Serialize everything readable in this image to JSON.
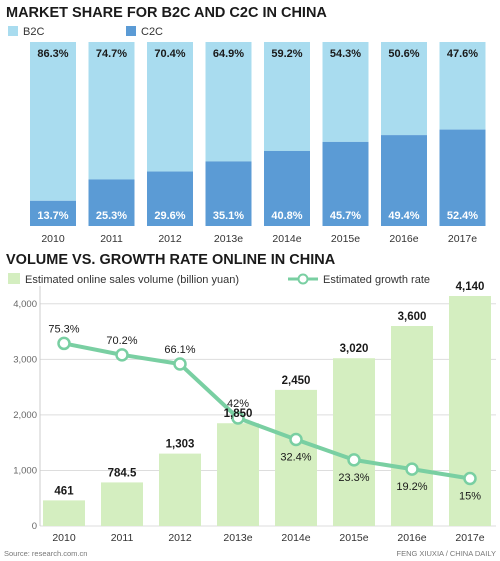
{
  "colors": {
    "b2c": "#a9dcef",
    "c2c": "#5b9bd5",
    "volume_bar": "#d4eec0",
    "growth_line": "#79cfa2",
    "gridline": "#dddddd",
    "title": "#1a1a1a"
  },
  "chart_data": [
    {
      "type": "bar",
      "stacked": true,
      "title": "MARKET SHARE FOR B2C AND C2C IN CHINA",
      "categories": [
        "2010",
        "2011",
        "2012",
        "2013e",
        "2014e",
        "2015e",
        "2016e",
        "2017e"
      ],
      "series": [
        {
          "name": "B2C",
          "values": [
            86.3,
            74.7,
            70.4,
            64.9,
            59.2,
            54.3,
            50.6,
            47.6
          ],
          "labels": [
            "86.3%",
            "74.7%",
            "70.4%",
            "64.9%",
            "59.2%",
            "54.3%",
            "50.6%",
            "47.6%"
          ]
        },
        {
          "name": "C2C",
          "values": [
            13.7,
            25.3,
            29.6,
            35.1,
            40.8,
            45.7,
            49.4,
            52.4
          ],
          "labels": [
            "13.7%",
            "25.3%",
            "29.6%",
            "35.1%",
            "40.8%",
            "45.7%",
            "49.4%",
            "52.4%"
          ]
        }
      ],
      "ylim": [
        0,
        100
      ],
      "legend": "top-left",
      "grid": false
    },
    {
      "type": "bar+line",
      "title": "VOLUME VS. GROWTH RATE ONLINE IN CHINA",
      "categories": [
        "2010",
        "2011",
        "2012",
        "2013e",
        "2014e",
        "2015e",
        "2016e",
        "2017e"
      ],
      "series": [
        {
          "name": "Estimated online sales volume (billion yuan)",
          "type": "bar",
          "values": [
            461,
            784.5,
            1303,
            1850,
            2450,
            3020,
            3600,
            4140
          ],
          "labels": [
            "461",
            "784.5",
            "1,303",
            "1,850",
            "2,450",
            "3,020",
            "3,600",
            "4,140"
          ]
        },
        {
          "name": "Estimated growth rate",
          "type": "line",
          "values": [
            75.3,
            70.2,
            66.1,
            42,
            32.4,
            23.3,
            19.2,
            15
          ],
          "labels": [
            "75.3%",
            "70.2%",
            "66.1%",
            "42%",
            "32.4%",
            "23.3%",
            "19.2%",
            "15%"
          ]
        }
      ],
      "yticks": [
        "0",
        "1,000",
        "2,000",
        "3,000",
        "4,000"
      ],
      "ytick_values": [
        0,
        1000,
        2000,
        3000,
        4000
      ],
      "ylim": [
        0,
        4500
      ],
      "legend": "top",
      "grid": true
    }
  ],
  "footer": {
    "source": "Source: research.com.cn",
    "credit": "FENG XIUXIA / CHINA DAILY"
  }
}
